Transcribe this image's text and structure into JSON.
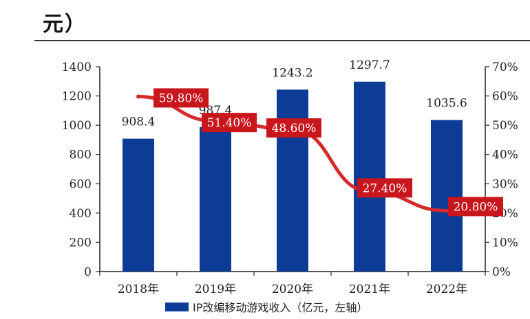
{
  "header": {
    "title_fragment": "元）"
  },
  "chart_data": {
    "type": "bar",
    "categories": [
      "2018年",
      "2019年",
      "2020年",
      "2021年",
      "2022年"
    ],
    "series": [
      {
        "name": "IP改编移动游戏收入（亿元，左轴）",
        "kind": "bar",
        "axis": "left",
        "values": [
          908.4,
          987.4,
          1243.2,
          1297.7,
          1035.6
        ],
        "labels": [
          "908.4",
          "987.4",
          "1243.2",
          "1297.7",
          "1035.6"
        ],
        "color": "#0c3c96"
      },
      {
        "name": "",
        "kind": "line",
        "axis": "right",
        "values": [
          59.8,
          51.4,
          48.6,
          27.4,
          20.8
        ],
        "labels": [
          "59.80%",
          "51.40%",
          "48.60%",
          "27.40%",
          "20.80%"
        ],
        "color": "#d42a2a"
      }
    ],
    "y_left": {
      "min": 0,
      "max": 1400,
      "ticks": [
        "0",
        "200",
        "400",
        "600",
        "800",
        "1000",
        "1200",
        "1400"
      ]
    },
    "y_right": {
      "min": 0,
      "max": 70,
      "ticks": [
        "0%",
        "10%",
        "20%",
        "30%",
        "40%",
        "50%",
        "60%",
        "70%"
      ]
    },
    "legend": {
      "position": "bottom"
    },
    "grid": false
  }
}
